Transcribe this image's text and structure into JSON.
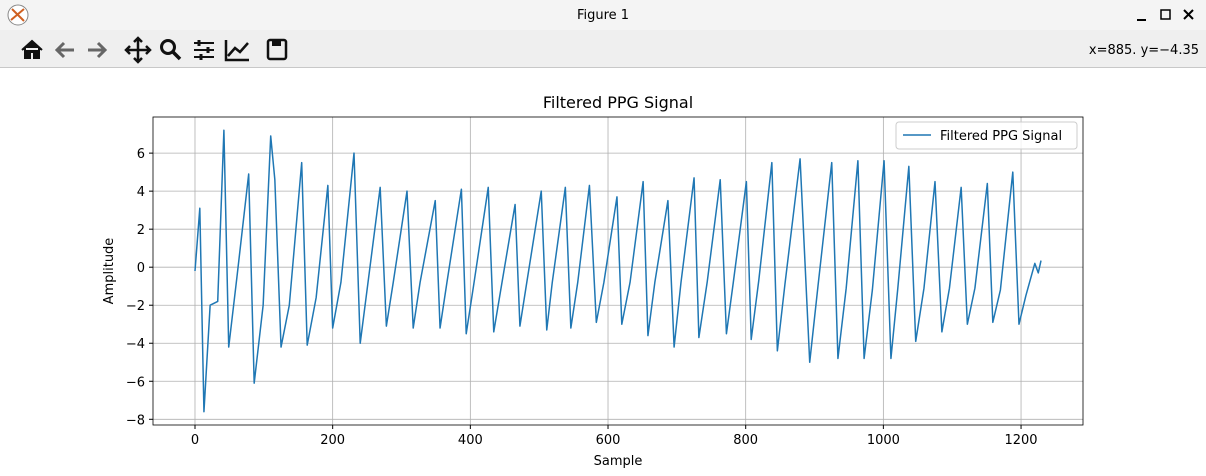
{
  "window": {
    "title": "Figure 1",
    "status": "x=885. y=−4.35"
  },
  "chart_data": {
    "type": "line",
    "title": "Filtered PPG Signal",
    "x_label": "Sample",
    "y_label": "Amplitude",
    "xlim": [
      -61,
      1290
    ],
    "ylim": [
      -8.3,
      7.9
    ],
    "xticks": [
      0,
      200,
      400,
      600,
      800,
      1000,
      1200
    ],
    "yticks": [
      {
        "value": -8,
        "label": "−8"
      },
      {
        "value": -6,
        "label": "−6"
      },
      {
        "value": -4,
        "label": "−4"
      },
      {
        "value": -2,
        "label": "−2"
      },
      0,
      2,
      4,
      6
    ],
    "grid": true,
    "legend": "upper right",
    "x": [
      0,
      7,
      13,
      22,
      33,
      42,
      49,
      61,
      78,
      86,
      99,
      110,
      116,
      125,
      137,
      155,
      163,
      176,
      193,
      200,
      212,
      231,
      240,
      251,
      269,
      278,
      288,
      308,
      317,
      327,
      349,
      356,
      366,
      387,
      394,
      405,
      426,
      434,
      446,
      465,
      472,
      482,
      503,
      511,
      519,
      538,
      546,
      556,
      573,
      583,
      594,
      613,
      620,
      632,
      651,
      658,
      668,
      687,
      696,
      706,
      725,
      732,
      744,
      763,
      772,
      782,
      801,
      808,
      819,
      838,
      846,
      857,
      879,
      893,
      905,
      925,
      934,
      946,
      963,
      972,
      984,
      1001,
      1011,
      1021,
      1037,
      1047,
      1059,
      1075,
      1085,
      1096,
      1113,
      1122,
      1133,
      1151,
      1159,
      1170,
      1188,
      1197,
      1207,
      1220,
      1225,
      1229
    ],
    "series": [
      {
        "name": "Filtered PPG Signal",
        "color": "#1f77b4",
        "values": [
          -0.2,
          3.1,
          -7.6,
          -2.0,
          -1.8,
          7.2,
          -4.2,
          -0.5,
          4.9,
          -6.1,
          -2.0,
          6.9,
          4.6,
          -4.2,
          -2.0,
          5.5,
          -4.1,
          -1.6,
          4.3,
          -3.2,
          -0.8,
          6.0,
          -4.0,
          -0.9,
          4.2,
          -3.1,
          -0.8,
          4.0,
          -3.2,
          -0.8,
          3.5,
          -3.2,
          -0.8,
          4.1,
          -3.5,
          -0.9,
          4.2,
          -3.4,
          -0.8,
          3.3,
          -3.1,
          -0.8,
          4.0,
          -3.3,
          -0.8,
          4.2,
          -3.2,
          -0.8,
          4.3,
          -2.9,
          -0.8,
          3.7,
          -3.0,
          -0.8,
          4.5,
          -3.6,
          -0.8,
          3.5,
          -4.2,
          -0.8,
          4.7,
          -3.7,
          -0.8,
          4.6,
          -3.5,
          -0.8,
          4.5,
          -3.8,
          -0.7,
          5.5,
          -4.4,
          -0.9,
          5.7,
          -5.0,
          -1.0,
          5.5,
          -4.8,
          -1.1,
          5.6,
          -4.8,
          -1.2,
          5.6,
          -4.8,
          -1.1,
          5.3,
          -3.9,
          -1.1,
          4.5,
          -3.4,
          -1.1,
          4.2,
          -3.0,
          -1.1,
          4.4,
          -2.9,
          -1.2,
          5.0,
          -3.0,
          -1.5,
          0.2,
          -0.3,
          0.35
        ]
      }
    ]
  }
}
